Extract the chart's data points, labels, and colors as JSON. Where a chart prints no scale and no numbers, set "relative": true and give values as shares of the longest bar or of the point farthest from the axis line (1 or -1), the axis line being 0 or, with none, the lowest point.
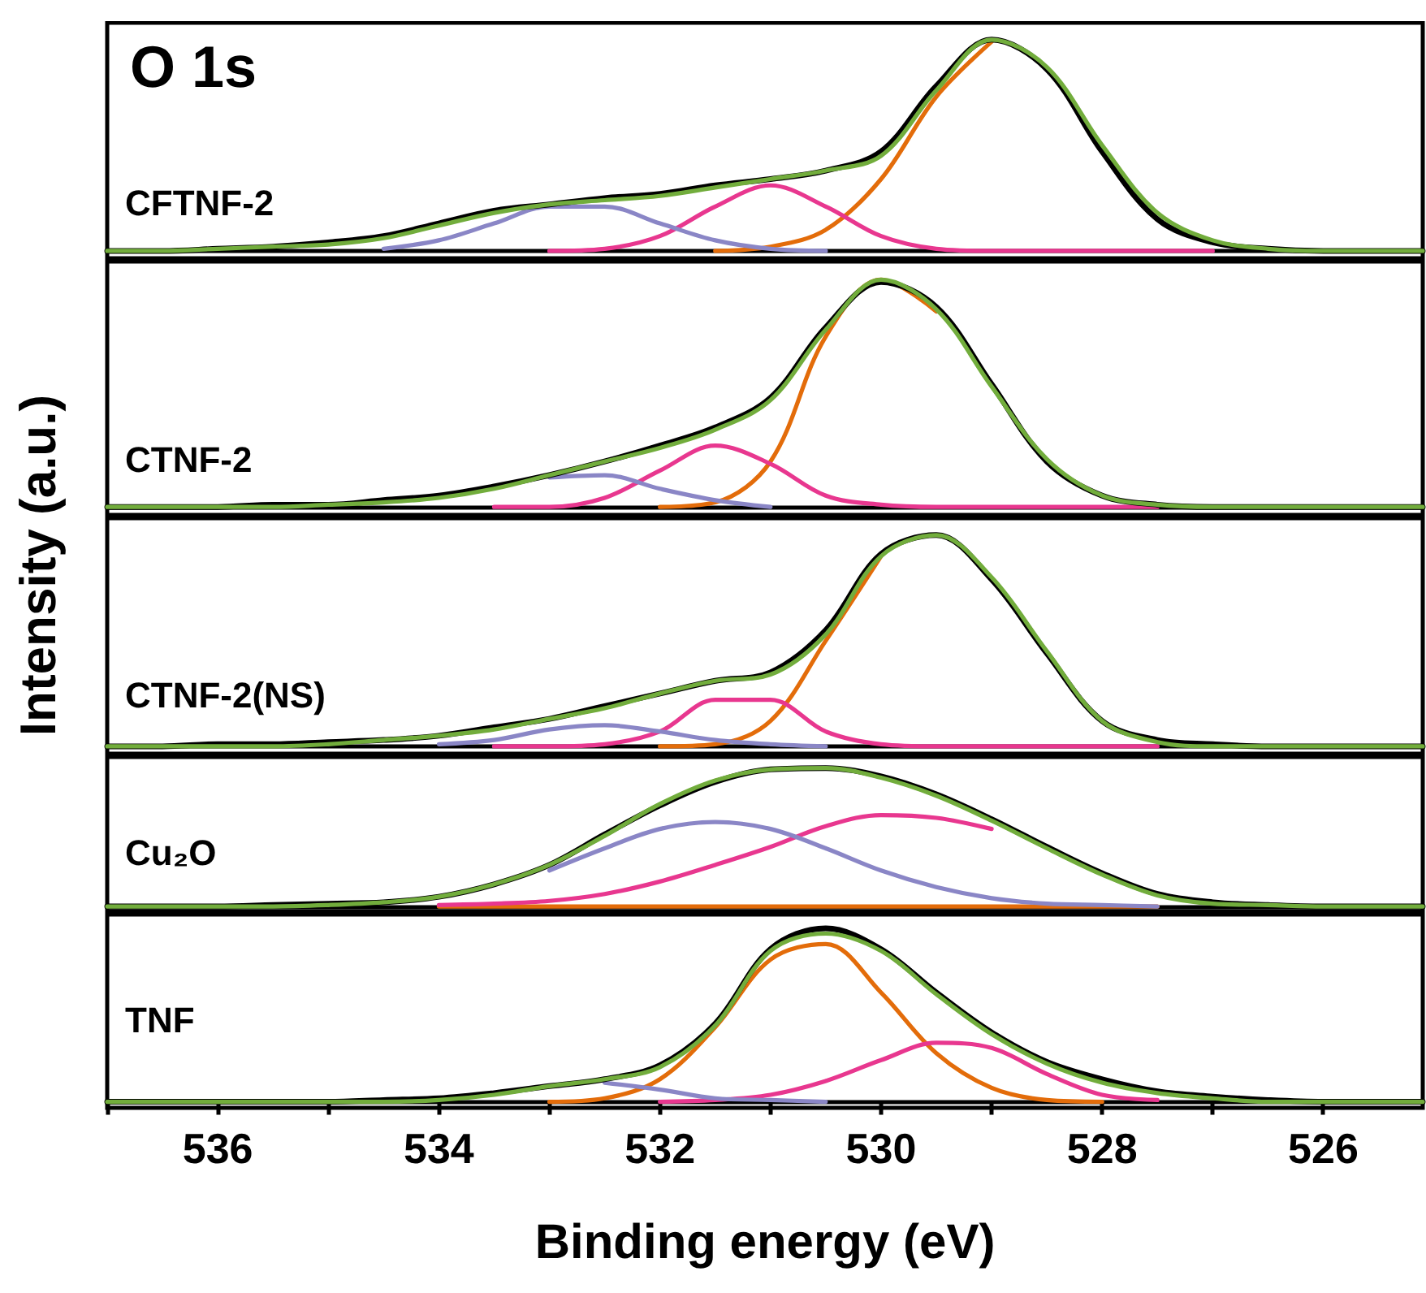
{
  "chart_data": [
    {
      "type": "line",
      "title": "CFTNF-2",
      "annotations": [
        "O 1s"
      ],
      "relative": true,
      "tick_labels": false,
      "xlim": [
        537,
        525.1
      ],
      "x": [
        537,
        536.5,
        536,
        535.5,
        535,
        534.5,
        534,
        533.5,
        533,
        532.5,
        532,
        531.5,
        531,
        530.5,
        530,
        529.5,
        529,
        528.5,
        528,
        527.5,
        527,
        526.5,
        526,
        525.5,
        525.1
      ],
      "series": [
        {
          "color": "#e36c0a",
          "values": [
            null,
            null,
            null,
            null,
            null,
            null,
            null,
            null,
            null,
            null,
            null,
            0,
            0.02,
            0.1,
            0.34,
            0.73,
            0.99,
            null,
            null,
            null,
            null,
            null,
            null,
            null,
            null
          ]
        },
        {
          "color": "#e8378f",
          "values": [
            null,
            null,
            null,
            null,
            null,
            null,
            null,
            null,
            0,
            0.01,
            0.07,
            0.21,
            0.31,
            0.21,
            0.07,
            0.01,
            0,
            0,
            0,
            0,
            0,
            null,
            null,
            null,
            null
          ]
        },
        {
          "color": "#8a86c6",
          "values": [
            null,
            null,
            null,
            null,
            null,
            0.01,
            0.05,
            0.13,
            0.21,
            0.21,
            0.13,
            0.05,
            0.01,
            0,
            null,
            null,
            null,
            null,
            null,
            null,
            null,
            null,
            null,
            null,
            null
          ]
        },
        {
          "color": "#000000",
          "values": [
            0,
            0,
            0.01,
            0.02,
            0.04,
            0.07,
            0.13,
            0.19,
            0.22,
            0.25,
            0.27,
            0.31,
            0.34,
            0.38,
            0.47,
            0.78,
            1.0,
            0.86,
            0.47,
            0.15,
            0.04,
            0.01,
            0,
            0,
            0
          ]
        },
        {
          "color": "#72ad3c",
          "values": [
            0,
            0,
            0.01,
            0.02,
            0.03,
            0.06,
            0.12,
            0.18,
            0.22,
            0.24,
            0.26,
            0.3,
            0.34,
            0.38,
            0.45,
            0.76,
            1.0,
            0.87,
            0.5,
            0.18,
            0.05,
            0.01,
            0,
            0,
            0
          ]
        }
      ]
    },
    {
      "type": "line",
      "title": "CTNF-2",
      "relative": true,
      "tick_labels": false,
      "xlim": [
        537,
        525.1
      ],
      "x": [
        537,
        536.5,
        536,
        535.5,
        535,
        534.5,
        534,
        533.5,
        533,
        532.5,
        532,
        531.5,
        531,
        530.5,
        530,
        529.5,
        529,
        528.5,
        528,
        527.5,
        527,
        526.5,
        526,
        525.5,
        525.1
      ],
      "series": [
        {
          "color": "#e36c0a",
          "values": [
            null,
            null,
            null,
            null,
            null,
            null,
            null,
            null,
            null,
            null,
            0,
            0.02,
            0.2,
            0.75,
            1.0,
            0.86,
            null,
            null,
            null,
            null,
            null,
            null,
            null,
            null,
            null
          ]
        },
        {
          "color": "#e8378f",
          "values": [
            null,
            null,
            null,
            null,
            null,
            null,
            null,
            0,
            0,
            0.04,
            0.16,
            0.27,
            0.19,
            0.05,
            0.01,
            0,
            0,
            0,
            0,
            0,
            null,
            null,
            null,
            null,
            null
          ]
        },
        {
          "color": "#8a86c6",
          "values": [
            null,
            null,
            null,
            null,
            null,
            null,
            null,
            null,
            0.13,
            0.14,
            0.08,
            0.03,
            0,
            null,
            null,
            null,
            null,
            null,
            null,
            null,
            null,
            null,
            null,
            null,
            null
          ]
        },
        {
          "color": "#000000",
          "values": [
            0,
            0,
            0,
            0.01,
            0.01,
            0.03,
            0.05,
            0.09,
            0.14,
            0.2,
            0.27,
            0.35,
            0.48,
            0.79,
            0.99,
            0.88,
            0.54,
            0.2,
            0.05,
            0.01,
            0,
            0,
            0,
            0,
            0
          ]
        },
        {
          "color": "#72ad3c",
          "values": [
            0,
            0,
            0,
            0,
            0.01,
            0.02,
            0.04,
            0.08,
            0.14,
            0.2,
            0.26,
            0.34,
            0.47,
            0.78,
            1.0,
            0.87,
            0.53,
            0.21,
            0.05,
            0.01,
            0,
            0,
            0,
            0,
            0
          ]
        }
      ]
    },
    {
      "type": "line",
      "title": "CTNF-2(NS)",
      "ylabel": "Intensity (a.u.)",
      "relative": true,
      "tick_labels": false,
      "xlim": [
        537,
        525.1
      ],
      "x": [
        537,
        536.5,
        536,
        535.5,
        535,
        534.5,
        534,
        533.5,
        533,
        532.5,
        532,
        531.5,
        531,
        530.5,
        530,
        529.5,
        529,
        528.5,
        528,
        527.5,
        527,
        526.5,
        526,
        525.5,
        525.1
      ],
      "series": [
        {
          "color": "#e36c0a",
          "values": [
            null,
            null,
            null,
            null,
            null,
            null,
            null,
            null,
            null,
            null,
            0,
            0.01,
            0.12,
            0.5,
            0.9,
            null,
            null,
            null,
            null,
            null,
            null,
            null,
            null,
            null,
            null
          ]
        },
        {
          "color": "#e8378f",
          "values": [
            null,
            null,
            null,
            null,
            null,
            null,
            null,
            0,
            0,
            0.01,
            0.07,
            0.22,
            0.22,
            0.07,
            0.01,
            0,
            0,
            0,
            0,
            0,
            null,
            null,
            null,
            null,
            null
          ]
        },
        {
          "color": "#8a86c6",
          "values": [
            null,
            null,
            null,
            null,
            null,
            null,
            0.01,
            0.03,
            0.08,
            0.1,
            0.07,
            0.03,
            0.01,
            0,
            null,
            null,
            null,
            null,
            null,
            null,
            null,
            null,
            null,
            null,
            null
          ]
        },
        {
          "color": "#000000",
          "values": [
            0,
            0,
            0.01,
            0.01,
            0.02,
            0.03,
            0.05,
            0.09,
            0.13,
            0.19,
            0.25,
            0.31,
            0.35,
            0.55,
            0.91,
            1.0,
            0.79,
            0.44,
            0.12,
            0.03,
            0.01,
            0,
            0,
            0,
            0
          ]
        },
        {
          "color": "#72ad3c",
          "values": [
            0,
            0,
            0,
            0,
            0.01,
            0.03,
            0.05,
            0.08,
            0.13,
            0.18,
            0.25,
            0.31,
            0.34,
            0.53,
            0.9,
            1.0,
            0.8,
            0.45,
            0.12,
            0.02,
            0,
            0,
            0,
            0,
            0
          ]
        }
      ]
    },
    {
      "type": "line",
      "title": "Cu₂O",
      "relative": true,
      "tick_labels": false,
      "xlim": [
        537,
        525.1
      ],
      "x": [
        537,
        536.5,
        536,
        535.5,
        535,
        534.5,
        534,
        533.5,
        533,
        532.5,
        532,
        531.5,
        531,
        530.5,
        530,
        529.5,
        529,
        528.5,
        528,
        527.5,
        527,
        526.5,
        526,
        525.5,
        525.1
      ],
      "series": [
        {
          "color": "#e36c0a",
          "values": [
            null,
            null,
            null,
            null,
            null,
            null,
            0,
            0,
            0,
            0,
            0,
            0,
            0,
            0,
            0,
            0,
            0,
            0,
            0,
            0,
            null,
            null,
            null,
            null,
            null
          ]
        },
        {
          "color": "#e8378f",
          "values": [
            null,
            null,
            null,
            null,
            null,
            null,
            0.01,
            0.02,
            0.04,
            0.09,
            0.18,
            0.3,
            0.43,
            0.58,
            0.66,
            0.64,
            0.56,
            null,
            null,
            null,
            null,
            null,
            null,
            null,
            null
          ]
        },
        {
          "color": "#8a86c6",
          "values": [
            null,
            null,
            null,
            null,
            null,
            null,
            null,
            null,
            0.26,
            0.42,
            0.56,
            0.61,
            0.56,
            0.42,
            0.26,
            0.14,
            0.06,
            0.02,
            0.01,
            0,
            null,
            null,
            null,
            null,
            null
          ]
        },
        {
          "color": "#000000",
          "values": [
            0,
            0,
            0,
            0.01,
            0.02,
            0.03,
            0.07,
            0.16,
            0.3,
            0.52,
            0.73,
            0.9,
            0.99,
            1.0,
            0.94,
            0.81,
            0.63,
            0.43,
            0.24,
            0.09,
            0.03,
            0.01,
            0,
            0,
            0
          ]
        },
        {
          "color": "#72ad3c",
          "values": [
            0,
            0,
            0,
            0,
            0.01,
            0.03,
            0.07,
            0.16,
            0.3,
            0.51,
            0.74,
            0.91,
            0.99,
            1.0,
            0.93,
            0.8,
            0.62,
            0.42,
            0.23,
            0.08,
            0.02,
            0.01,
            0,
            0,
            0
          ]
        }
      ]
    },
    {
      "type": "line",
      "title": "TNF",
      "xlabel": "Binding energy (eV)",
      "relative": true,
      "xlim": [
        537,
        525.1
      ],
      "xticks": [
        {
          "value": 537,
          "label": null
        },
        536,
        {
          "value": 535,
          "label": null
        },
        534,
        {
          "value": 533,
          "label": null
        },
        532,
        {
          "value": 531,
          "label": null
        },
        530,
        {
          "value": 529,
          "label": null
        },
        528,
        {
          "value": 527,
          "label": null
        },
        526
      ],
      "x": [
        537,
        536.5,
        536,
        535.5,
        535,
        534.5,
        534,
        533.5,
        533,
        532.5,
        532,
        531.5,
        531,
        530.5,
        530,
        529.5,
        529,
        528.5,
        528,
        527.5,
        527,
        526.5,
        526,
        525.5,
        525.1
      ],
      "series": [
        {
          "color": "#e36c0a",
          "values": [
            null,
            null,
            null,
            null,
            null,
            null,
            null,
            null,
            0,
            0.02,
            0.13,
            0.43,
            0.82,
            0.91,
            0.63,
            0.28,
            0.08,
            0.01,
            0,
            null,
            null,
            null,
            null,
            null,
            null
          ]
        },
        {
          "color": "#e8378f",
          "values": [
            null,
            null,
            null,
            null,
            null,
            null,
            null,
            null,
            null,
            null,
            0,
            0.01,
            0.04,
            0.12,
            0.24,
            0.34,
            0.31,
            0.16,
            0.04,
            0.01,
            null,
            null,
            null,
            null,
            null
          ]
        },
        {
          "color": "#8a86c6",
          "values": [
            null,
            null,
            null,
            null,
            null,
            null,
            null,
            null,
            null,
            0.11,
            0.07,
            0.02,
            0.01,
            0,
            null,
            null,
            null,
            null,
            null,
            null,
            null,
            null,
            null,
            null,
            null
          ]
        },
        {
          "color": "#000000",
          "values": [
            0,
            0,
            0,
            0,
            0,
            0.01,
            0.02,
            0.05,
            0.09,
            0.13,
            0.21,
            0.45,
            0.88,
            1.0,
            0.88,
            0.63,
            0.4,
            0.23,
            0.13,
            0.06,
            0.03,
            0.01,
            0,
            0,
            0
          ]
        },
        {
          "color": "#72ad3c",
          "values": [
            0,
            0,
            0,
            0,
            0,
            0,
            0.01,
            0.04,
            0.09,
            0.13,
            0.2,
            0.44,
            0.87,
            0.97,
            0.87,
            0.62,
            0.39,
            0.22,
            0.11,
            0.05,
            0.02,
            0,
            0,
            0,
            0
          ]
        }
      ]
    }
  ]
}
